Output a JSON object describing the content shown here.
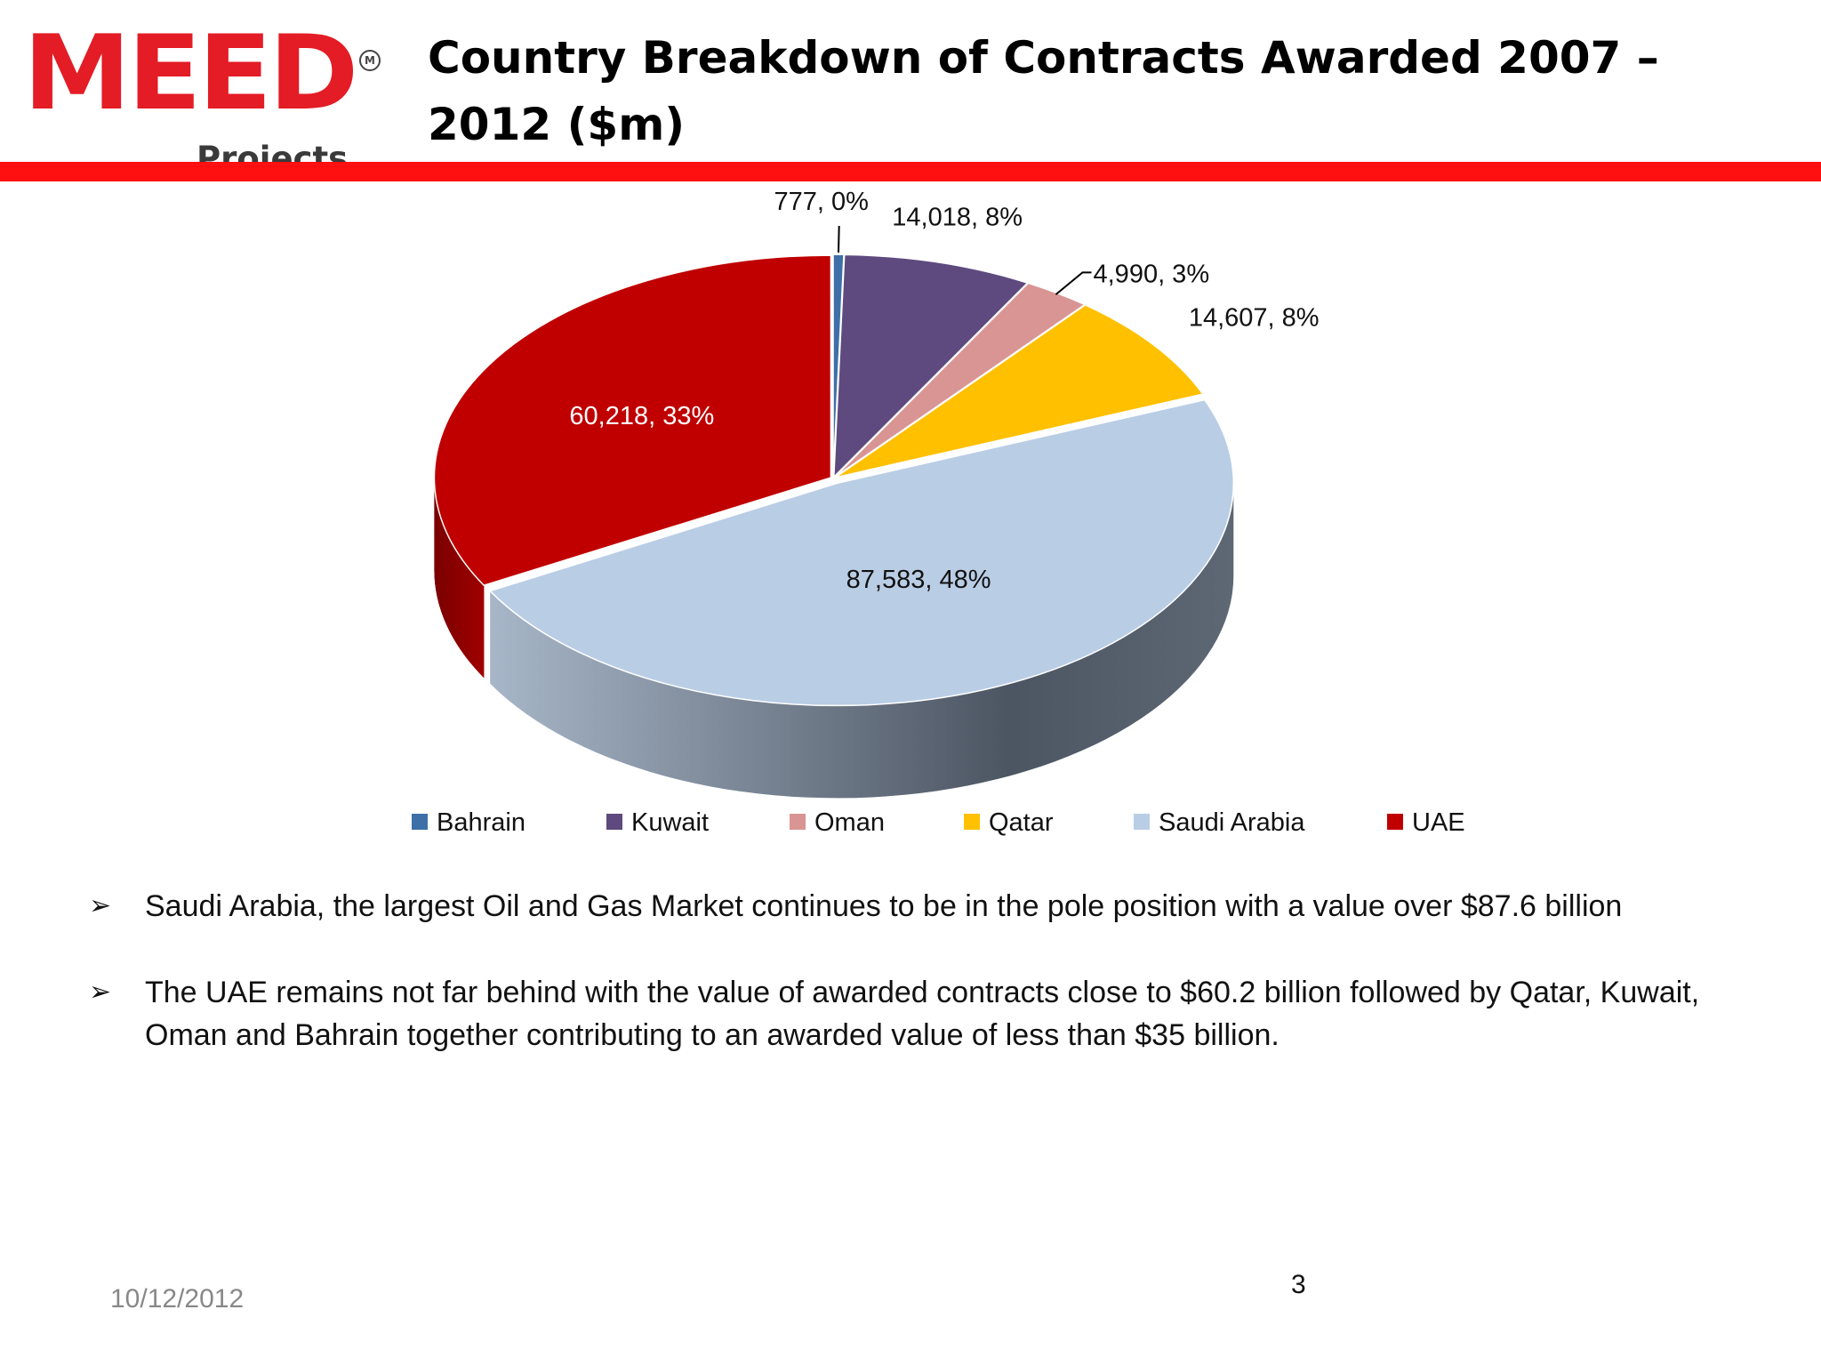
{
  "header": {
    "logo_text": "MEED",
    "logo_sub": "Projects",
    "logo_mark": "M",
    "title": "Country Breakdown of Contracts Awarded 2007 – 2012 ($m)",
    "brand_color": "#e31c25",
    "rule_color": "#ff1010"
  },
  "chart_data": {
    "type": "pie",
    "style": "3d-exploded-tilted",
    "categories": [
      "Bahrain",
      "Kuwait",
      "Oman",
      "Qatar",
      "Saudi Arabia",
      "UAE"
    ],
    "values": [
      777,
      14018,
      4990,
      14607,
      87583,
      60218
    ],
    "data_labels": [
      "777, 0%",
      "14,018, 8%",
      "4,990, 3%",
      "14,607, 8%",
      "87,583, 48%",
      "60,218, 33%"
    ],
    "colors": [
      "#3f6fa8",
      "#5e4a7e",
      "#d99594",
      "#ffc000",
      "#b9cde5",
      "#c00000"
    ],
    "legend": [
      "Bahrain",
      "Kuwait",
      "Oman",
      "Qatar",
      "Saudi Arabia",
      "UAE"
    ],
    "legend_position": "bottom"
  },
  "bullets": [
    "Saudi Arabia, the largest Oil and Gas Market continues to be in the pole position with a value over $87.6 billion",
    "The UAE remains not far behind with the value of awarded contracts close to $60.2 billion followed by Qatar, Kuwait, Oman and Bahrain together contributing to an awarded value of less than $35  billion."
  ],
  "bullet_glyph": "➢",
  "footer": {
    "date": "10/12/2012",
    "page": "3"
  }
}
